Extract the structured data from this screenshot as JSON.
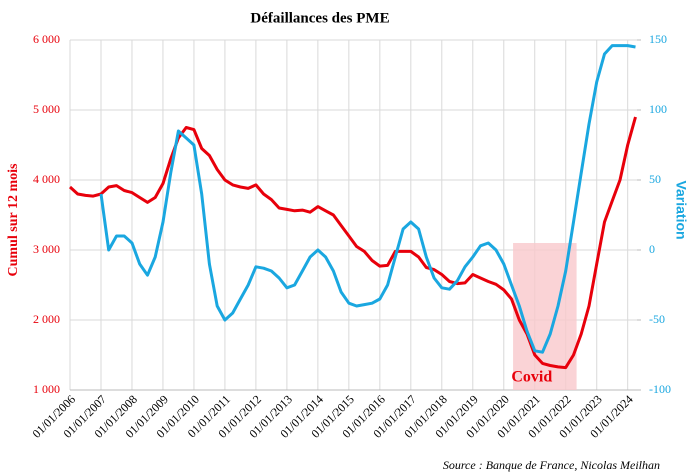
{
  "chart_data": {
    "type": "line",
    "title": "Défaillances des PME",
    "ylabel": "Cumul sur 12 mois",
    "y2label": "Variation",
    "source": "Source : Banque de France, Nicolas Meilhan",
    "x": [
      2006,
      2006.25,
      2006.5,
      2006.75,
      2007,
      2007.25,
      2007.5,
      2007.75,
      2008,
      2008.25,
      2008.5,
      2008.75,
      2009,
      2009.25,
      2009.5,
      2009.75,
      2010,
      2010.25,
      2010.5,
      2010.75,
      2011,
      2011.25,
      2011.5,
      2011.75,
      2012,
      2012.25,
      2012.5,
      2012.75,
      2013,
      2013.25,
      2013.5,
      2013.75,
      2014,
      2014.25,
      2014.5,
      2014.75,
      2015,
      2015.25,
      2015.5,
      2015.75,
      2016,
      2016.25,
      2016.5,
      2016.75,
      2017,
      2017.25,
      2017.5,
      2017.75,
      2018,
      2018.25,
      2018.5,
      2018.75,
      2019,
      2019.25,
      2019.5,
      2019.75,
      2020,
      2020.25,
      2020.5,
      2020.75,
      2021,
      2021.25,
      2021.5,
      2021.75,
      2022,
      2022.25,
      2022.5,
      2022.75,
      2023,
      2023.25,
      2023.5,
      2023.75,
      2024,
      2024.25
    ],
    "series": [
      {
        "name": "Cumul sur 12 mois",
        "color": "#e8000b",
        "axis": "y",
        "values": [
          3900,
          3800,
          3780,
          3770,
          3800,
          3900,
          3920,
          3850,
          3820,
          3750,
          3680,
          3750,
          3950,
          4300,
          4600,
          4750,
          4720,
          4450,
          4350,
          4150,
          4000,
          3930,
          3900,
          3880,
          3930,
          3800,
          3720,
          3600,
          3580,
          3560,
          3570,
          3540,
          3620,
          3560,
          3500,
          3350,
          3200,
          3050,
          2980,
          2850,
          2770,
          2780,
          2980,
          2980,
          2980,
          2900,
          2750,
          2720,
          2650,
          2550,
          2520,
          2530,
          2650,
          2600,
          2550,
          2510,
          2430,
          2300,
          2000,
          1800,
          1500,
          1380,
          1350,
          1330,
          1320,
          1500,
          1800,
          2200,
          2800,
          3400,
          3700,
          4000,
          4500,
          4900
        ]
      },
      {
        "name": "Variation",
        "color": "#1aa7e0",
        "axis": "y2",
        "values": [
          null,
          null,
          null,
          null,
          40,
          0,
          10,
          10,
          5,
          -10,
          -18,
          -5,
          20,
          55,
          85,
          80,
          75,
          40,
          -10,
          -40,
          -50,
          -45,
          -35,
          -25,
          -12,
          -13,
          -15,
          -20,
          -27,
          -25,
          -15,
          -5,
          0,
          -5,
          -15,
          -30,
          -38,
          -40,
          -39,
          -38,
          -35,
          -25,
          -5,
          15,
          20,
          15,
          -5,
          -20,
          -27,
          -28,
          -22,
          -12,
          -5,
          3,
          5,
          0,
          -10,
          -25,
          -40,
          -58,
          -72,
          -73,
          -60,
          -40,
          -15,
          20,
          55,
          90,
          120,
          140,
          146,
          146,
          146,
          145
        ]
      }
    ],
    "xlim": [
      2006,
      2024.3
    ],
    "xticks": [
      {
        "value": 2006,
        "label": "01/01/2006"
      },
      {
        "value": 2007,
        "label": "01/01/2007"
      },
      {
        "value": 2008,
        "label": "01/01/2008"
      },
      {
        "value": 2009,
        "label": "01/01/2009"
      },
      {
        "value": 2010,
        "label": "01/01/2010"
      },
      {
        "value": 2011,
        "label": "01/01/2011"
      },
      {
        "value": 2012,
        "label": "01/01/2012"
      },
      {
        "value": 2013,
        "label": "01/01/2013"
      },
      {
        "value": 2014,
        "label": "01/01/2014"
      },
      {
        "value": 2015,
        "label": "01/01/2015"
      },
      {
        "value": 2016,
        "label": "01/01/2016"
      },
      {
        "value": 2017,
        "label": "01/01/2017"
      },
      {
        "value": 2018,
        "label": "01/01/2018"
      },
      {
        "value": 2019,
        "label": "01/01/2019"
      },
      {
        "value": 2020,
        "label": "01/01/2020"
      },
      {
        "value": 2021,
        "label": "01/01/2021"
      },
      {
        "value": 2022,
        "label": "01/01/2022"
      },
      {
        "value": 2023,
        "label": "01/01/2023"
      },
      {
        "value": 2024,
        "label": "01/01/2024"
      }
    ],
    "ylim": [
      1000,
      6000
    ],
    "yticks": [
      {
        "value": 1000,
        "label": "1 000"
      },
      {
        "value": 2000,
        "label": "2 000"
      },
      {
        "value": 3000,
        "label": "3 000"
      },
      {
        "value": 4000,
        "label": "4 000"
      },
      {
        "value": 5000,
        "label": "5 000"
      },
      {
        "value": 6000,
        "label": "6 000"
      }
    ],
    "y2lim": [
      -100,
      150
    ],
    "y2ticks": [
      -100,
      -50,
      0,
      50,
      100,
      150
    ],
    "grid": true,
    "highlight": {
      "label": "Covid",
      "color": "#f9c8cc",
      "xlim": [
        2020.3,
        2022.35
      ],
      "ylim": [
        1000,
        3100
      ]
    }
  }
}
